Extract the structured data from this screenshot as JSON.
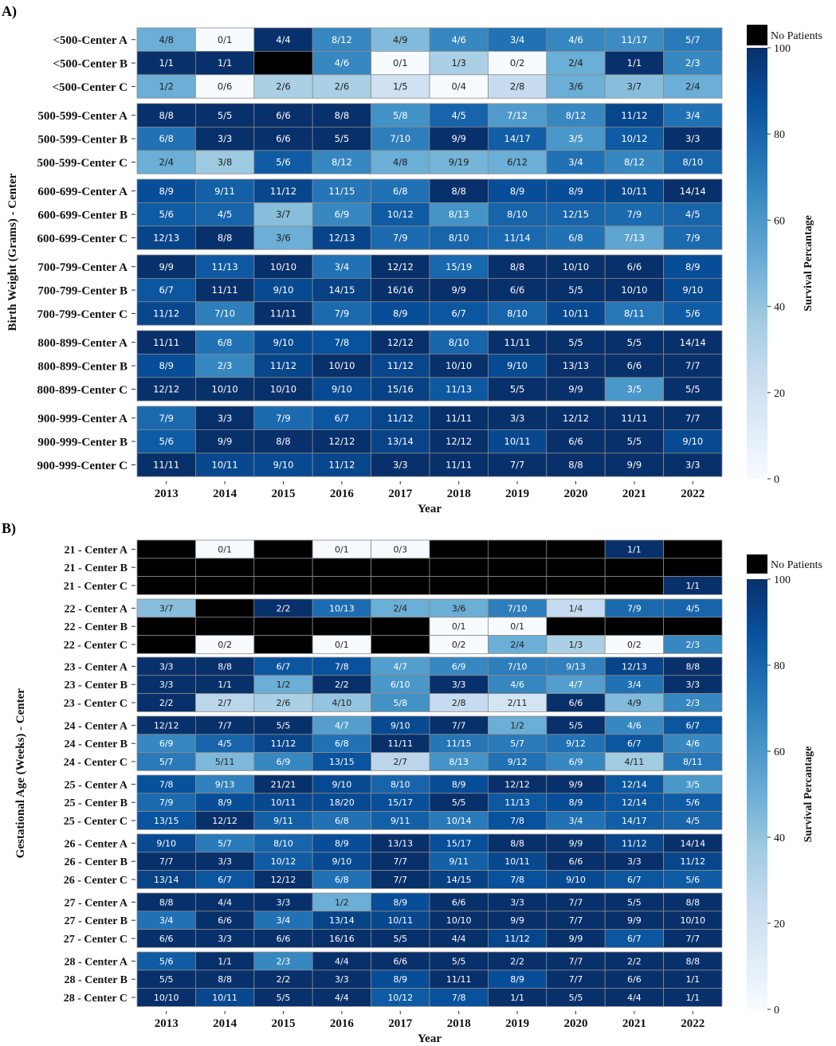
{
  "chart_data": [
    {
      "type": "heatmap",
      "panel_label": "A)",
      "xlabel": "Year",
      "ylabel": "Birth Weight (Grams) - Center",
      "colorbar_label": "Survival Percantage",
      "colorbar_ticks": [
        "0",
        "20",
        "40",
        "60",
        "80",
        "100"
      ],
      "value_range": [
        0,
        100
      ],
      "no_patients_label": "No Patients",
      "years": [
        "2013",
        "2014",
        "2015",
        "2016",
        "2017",
        "2018",
        "2019",
        "2020",
        "2021",
        "2022"
      ],
      "groups": [
        {
          "rows": [
            {
              "label": "<500-Center A",
              "cells": [
                "4/8",
                "0/1",
                "4/4",
                "8/12",
                "4/9",
                "4/6",
                "3/4",
                "4/6",
                "11/17",
                "5/7"
              ]
            },
            {
              "label": "<500-Center B",
              "cells": [
                "1/1",
                "1/1",
                "",
                "4/6",
                "0/1",
                "1/3",
                "0/2",
                "2/4",
                "1/1",
                "2/3"
              ]
            },
            {
              "label": "<500-Center C",
              "cells": [
                "1/2",
                "0/6",
                "2/6",
                "2/6",
                "1/5",
                "0/4",
                "2/8",
                "3/6",
                "3/7",
                "2/4"
              ]
            }
          ]
        },
        {
          "rows": [
            {
              "label": "500-599-Center A",
              "cells": [
                "8/8",
                "5/5",
                "6/6",
                "8/8",
                "5/8",
                "4/5",
                "7/12",
                "8/12",
                "11/12",
                "3/4"
              ]
            },
            {
              "label": "500-599-Center B",
              "cells": [
                "6/8",
                "3/3",
                "6/6",
                "5/5",
                "7/10",
                "9/9",
                "14/17",
                "3/5",
                "10/12",
                "3/3"
              ]
            },
            {
              "label": "500-599-Center C",
              "cells": [
                "2/4",
                "3/8",
                "5/6",
                "8/12",
                "4/8",
                "9/19",
                "6/12",
                "3/4",
                "8/12",
                "8/10"
              ]
            }
          ]
        },
        {
          "rows": [
            {
              "label": "600-699-Center A",
              "cells": [
                "8/9",
                "9/11",
                "11/12",
                "11/15",
                "6/8",
                "8/8",
                "8/9",
                "8/9",
                "10/11",
                "14/14"
              ]
            },
            {
              "label": "600-699-Center B",
              "cells": [
                "5/6",
                "4/5",
                "3/7",
                "6/9",
                "10/12",
                "8/13",
                "8/10",
                "12/15",
                "7/9",
                "4/5"
              ]
            },
            {
              "label": "600-699-Center C",
              "cells": [
                "12/13",
                "8/8",
                "3/6",
                "12/13",
                "7/9",
                "8/10",
                "11/14",
                "6/8",
                "7/13",
                "7/9"
              ]
            }
          ]
        },
        {
          "rows": [
            {
              "label": "700-799-Center A",
              "cells": [
                "9/9",
                "11/13",
                "10/10",
                "3/4",
                "12/12",
                "15/19",
                "8/8",
                "10/10",
                "6/6",
                "8/9"
              ]
            },
            {
              "label": "700-799-Center B",
              "cells": [
                "6/7",
                "11/11",
                "9/10",
                "14/15",
                "16/16",
                "9/9",
                "6/6",
                "5/5",
                "10/10",
                "9/10"
              ]
            },
            {
              "label": "700-799-Center C",
              "cells": [
                "11/12",
                "7/10",
                "11/11",
                "7/9",
                "8/9",
                "6/7",
                "8/10",
                "10/11",
                "8/11",
                "5/6"
              ]
            }
          ]
        },
        {
          "rows": [
            {
              "label": "800-899-Center A",
              "cells": [
                "11/11",
                "6/8",
                "9/10",
                "7/8",
                "12/12",
                "8/10",
                "11/11",
                "5/5",
                "5/5",
                "14/14"
              ]
            },
            {
              "label": "800-899-Center B",
              "cells": [
                "8/9",
                "2/3",
                "11/12",
                "10/10",
                "11/12",
                "10/10",
                "9/10",
                "13/13",
                "6/6",
                "7/7"
              ]
            },
            {
              "label": "800-899-Center C",
              "cells": [
                "12/12",
                "10/10",
                "10/10",
                "9/10",
                "15/16",
                "11/13",
                "5/5",
                "9/9",
                "3/5",
                "5/5"
              ]
            }
          ]
        },
        {
          "rows": [
            {
              "label": "900-999-Center A",
              "cells": [
                "7/9",
                "3/3",
                "7/9",
                "6/7",
                "11/12",
                "11/11",
                "3/3",
                "12/12",
                "11/11",
                "7/7"
              ]
            },
            {
              "label": "900-999-Center B",
              "cells": [
                "5/6",
                "9/9",
                "8/8",
                "12/12",
                "13/14",
                "12/12",
                "10/11",
                "6/6",
                "5/5",
                "9/10"
              ]
            },
            {
              "label": "900-999-Center C",
              "cells": [
                "11/11",
                "10/11",
                "9/10",
                "11/12",
                "3/3",
                "11/11",
                "7/7",
                "8/8",
                "9/9",
                "3/3"
              ]
            }
          ]
        }
      ]
    },
    {
      "type": "heatmap",
      "panel_label": "B)",
      "xlabel": "Year",
      "ylabel": "Gestational Age (Weeks) - Center",
      "colorbar_label": "Survival Percantage",
      "colorbar_ticks": [
        "0",
        "20",
        "40",
        "60",
        "80",
        "100"
      ],
      "value_range": [
        0,
        100
      ],
      "no_patients_label": "No Patients",
      "years": [
        "2013",
        "2014",
        "2015",
        "2016",
        "2017",
        "2018",
        "2019",
        "2020",
        "2021",
        "2022"
      ],
      "groups": [
        {
          "rows": [
            {
              "label": "21 - Center A",
              "cells": [
                "",
                "0/1",
                "",
                "0/1",
                "0/3",
                "",
                "",
                "",
                "1/1",
                ""
              ]
            },
            {
              "label": "21 - Center B",
              "cells": [
                "",
                "",
                "",
                "",
                "",
                "",
                "",
                "",
                "",
                ""
              ]
            },
            {
              "label": "21 - Center C",
              "cells": [
                "",
                "",
                "",
                "",
                "",
                "",
                "",
                "",
                "",
                "1/1"
              ]
            }
          ]
        },
        {
          "rows": [
            {
              "label": "22 - Center A",
              "cells": [
                "3/7",
                "",
                "2/2",
                "10/13",
                "2/4",
                "3/6",
                "7/10",
                "1/4",
                "7/9",
                "4/5"
              ]
            },
            {
              "label": "22 - Center B",
              "cells": [
                "",
                "",
                "",
                "",
                "",
                "0/1",
                "0/1",
                "",
                "",
                ""
              ]
            },
            {
              "label": "22 - Center C",
              "cells": [
                "",
                "0/2",
                "",
                "0/1",
                "",
                "0/2",
                "2/4",
                "1/3",
                "0/2",
                "2/3"
              ]
            }
          ]
        },
        {
          "rows": [
            {
              "label": "23 - Center A",
              "cells": [
                "3/3",
                "8/8",
                "6/7",
                "7/8",
                "4/7",
                "6/9",
                "7/10",
                "9/13",
                "12/13",
                "8/8"
              ]
            },
            {
              "label": "23 - Center B",
              "cells": [
                "3/3",
                "1/1",
                "1/2",
                "2/2",
                "6/10",
                "3/3",
                "4/6",
                "4/7",
                "3/4",
                "3/3"
              ]
            },
            {
              "label": "23 - Center C",
              "cells": [
                "2/2",
                "2/7",
                "2/6",
                "4/10",
                "5/8",
                "2/8",
                "2/11",
                "6/6",
                "4/9",
                "2/3"
              ]
            }
          ]
        },
        {
          "rows": [
            {
              "label": "24 - Center A",
              "cells": [
                "12/12",
                "7/7",
                "5/5",
                "4/7",
                "9/10",
                "7/7",
                "1/2",
                "5/5",
                "4/6",
                "6/7"
              ]
            },
            {
              "label": "24 - Center B",
              "cells": [
                "6/9",
                "4/5",
                "11/12",
                "6/8",
                "11/11",
                "11/15",
                "5/7",
                "9/12",
                "6/7",
                "4/6"
              ]
            },
            {
              "label": "24 - Center C",
              "cells": [
                "5/7",
                "5/11",
                "6/9",
                "13/15",
                "2/7",
                "8/13",
                "9/12",
                "6/9",
                "4/11",
                "8/11"
              ]
            }
          ]
        },
        {
          "rows": [
            {
              "label": "25 - Center A",
              "cells": [
                "7/8",
                "9/13",
                "21/21",
                "9/10",
                "8/10",
                "8/9",
                "12/12",
                "9/9",
                "12/14",
                "3/5"
              ]
            },
            {
              "label": "25 - Center B",
              "cells": [
                "7/9",
                "8/9",
                "10/11",
                "18/20",
                "15/17",
                "5/5",
                "11/13",
                "8/9",
                "12/14",
                "5/6"
              ]
            },
            {
              "label": "25 - Center C",
              "cells": [
                "13/15",
                "12/12",
                "9/11",
                "6/8",
                "9/11",
                "10/14",
                "7/8",
                "3/4",
                "14/17",
                "4/5"
              ]
            }
          ]
        },
        {
          "rows": [
            {
              "label": "26 - Center A",
              "cells": [
                "9/10",
                "5/7",
                "8/10",
                "8/9",
                "13/13",
                "15/17",
                "8/8",
                "9/9",
                "11/12",
                "14/14"
              ]
            },
            {
              "label": "26 - Center B",
              "cells": [
                "7/7",
                "3/3",
                "10/12",
                "9/10",
                "7/7",
                "9/11",
                "10/11",
                "6/6",
                "3/3",
                "11/12"
              ]
            },
            {
              "label": "26 - Center C",
              "cells": [
                "13/14",
                "6/7",
                "12/12",
                "6/8",
                "7/7",
                "14/15",
                "7/8",
                "9/10",
                "6/7",
                "5/6"
              ]
            }
          ]
        },
        {
          "rows": [
            {
              "label": "27 - Center A",
              "cells": [
                "8/8",
                "4/4",
                "3/3",
                "1/2",
                "8/9",
                "6/6",
                "3/3",
                "7/7",
                "5/5",
                "8/8"
              ]
            },
            {
              "label": "27 - Center B",
              "cells": [
                "3/4",
                "6/6",
                "3/4",
                "13/14",
                "10/11",
                "10/10",
                "9/9",
                "7/7",
                "9/9",
                "10/10"
              ]
            },
            {
              "label": "27 - Center C",
              "cells": [
                "6/6",
                "3/3",
                "6/6",
                "16/16",
                "5/5",
                "4/4",
                "11/12",
                "9/9",
                "6/7",
                "7/7"
              ]
            }
          ]
        },
        {
          "rows": [
            {
              "label": "28 - Center A",
              "cells": [
                "5/6",
                "1/1",
                "2/3",
                "4/4",
                "6/6",
                "5/5",
                "2/2",
                "7/7",
                "2/2",
                "8/8"
              ]
            },
            {
              "label": "28 - Center B",
              "cells": [
                "5/5",
                "8/8",
                "2/2",
                "3/3",
                "8/9",
                "11/11",
                "8/9",
                "7/7",
                "6/6",
                "1/1"
              ]
            },
            {
              "label": "28 - Center C",
              "cells": [
                "10/10",
                "10/11",
                "5/5",
                "4/4",
                "10/12",
                "7/8",
                "1/1",
                "5/5",
                "4/4",
                "1/1"
              ]
            }
          ]
        }
      ]
    }
  ]
}
